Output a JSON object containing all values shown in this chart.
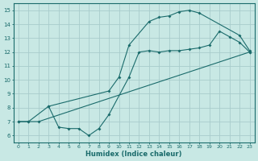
{
  "xlabel": "Humidex (Indice chaleur)",
  "ylabel": "",
  "xlim": [
    -0.5,
    23.5
  ],
  "ylim": [
    5.5,
    15.5
  ],
  "xticks": [
    0,
    1,
    2,
    3,
    4,
    5,
    6,
    7,
    8,
    9,
    10,
    11,
    12,
    13,
    14,
    15,
    16,
    17,
    18,
    19,
    20,
    21,
    22,
    23
  ],
  "yticks": [
    6,
    7,
    8,
    9,
    10,
    11,
    12,
    13,
    14,
    15
  ],
  "bg_color": "#c8e8e4",
  "grid_color": "#a8cccc",
  "line_color": "#1a6b6b",
  "line1_x": [
    0,
    1,
    2,
    23
  ],
  "line1_y": [
    7.0,
    7.0,
    7.0,
    12.0
  ],
  "line2_x": [
    0,
    1,
    3,
    9,
    10,
    11,
    13,
    14,
    15,
    16,
    17,
    18,
    22,
    23
  ],
  "line2_y": [
    7.0,
    7.0,
    8.1,
    9.2,
    10.2,
    12.5,
    14.2,
    14.5,
    14.6,
    14.9,
    15.0,
    14.8,
    13.2,
    12.1
  ],
  "line3_x": [
    3,
    4,
    5,
    6,
    7,
    8,
    9,
    11,
    12,
    13,
    14,
    15,
    16,
    17,
    18,
    19,
    20,
    21,
    22,
    23
  ],
  "line3_y": [
    8.1,
    6.6,
    6.5,
    6.5,
    6.0,
    6.5,
    7.5,
    10.2,
    12.0,
    12.1,
    12.0,
    12.1,
    12.1,
    12.2,
    12.3,
    12.5,
    13.5,
    13.1,
    12.7,
    12.0
  ]
}
